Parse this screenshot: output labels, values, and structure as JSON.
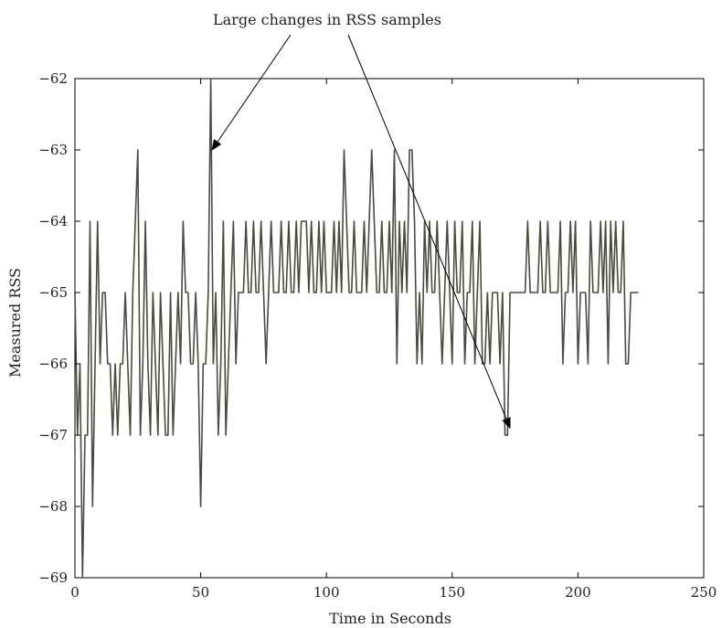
{
  "chart_data": {
    "type": "line",
    "title": "",
    "xlabel": "Time in Seconds",
    "ylabel": "Measured RSS",
    "xlim": [
      0,
      250
    ],
    "ylim": [
      -69,
      -62
    ],
    "xticks": [
      0,
      50,
      100,
      150,
      200,
      250
    ],
    "yticks": [
      -69,
      -68,
      -67,
      -66,
      -65,
      -64,
      -63,
      -62
    ],
    "xtick_labels": [
      "0",
      "50",
      "100",
      "150",
      "200",
      "250"
    ],
    "ytick_labels": [
      "−69",
      "−68",
      "−67",
      "−66",
      "−65",
      "−64",
      "−63",
      "−62"
    ],
    "grid": false,
    "legend": "none",
    "line_color": "#4a4a40",
    "series": [
      {
        "x": [
          0,
          1,
          2,
          3,
          4,
          5,
          6,
          7,
          8,
          9,
          10,
          11,
          12,
          13,
          14,
          15,
          16,
          17,
          18,
          19,
          20,
          21,
          22,
          23,
          24,
          25,
          26,
          27,
          28,
          29,
          30,
          31,
          32,
          33,
          34,
          35,
          36,
          37,
          38,
          39,
          40,
          41,
          42,
          43,
          44,
          45,
          46,
          47,
          48,
          49,
          50,
          51,
          52,
          53,
          54,
          55,
          56,
          57,
          58,
          59,
          60,
          61,
          62,
          63,
          64,
          65,
          66,
          67,
          68,
          69,
          70,
          71,
          72,
          73,
          74,
          75,
          76,
          77,
          78,
          79,
          80,
          81,
          82,
          83,
          84,
          85,
          86,
          87,
          88,
          89,
          90,
          91,
          92,
          93,
          94,
          95,
          96,
          97,
          98,
          99,
          100,
          101,
          102,
          103,
          104,
          105,
          106,
          107,
          108,
          109,
          110,
          111,
          112,
          113,
          114,
          115,
          116,
          117,
          118,
          119,
          120,
          121,
          122,
          123,
          124,
          125,
          126,
          127,
          128,
          129,
          130,
          131,
          132,
          133,
          134,
          135,
          136,
          137,
          138,
          139,
          140,
          141,
          142,
          143,
          144,
          145,
          146,
          147,
          148,
          149,
          150,
          151,
          152,
          153,
          154,
          155,
          156,
          157,
          158,
          159,
          160,
          161,
          162,
          163,
          164,
          165,
          166,
          167,
          168,
          169,
          170,
          171,
          172,
          173,
          174,
          175,
          176,
          177,
          178,
          179,
          180,
          181,
          182,
          183,
          184,
          185,
          186,
          187,
          188,
          189,
          190,
          191,
          192,
          193,
          194,
          195,
          196,
          197,
          198,
          199,
          200,
          201,
          202,
          203,
          204,
          205,
          206,
          207,
          208,
          209,
          210,
          211,
          212,
          213,
          214,
          215,
          216,
          217,
          218,
          219,
          220,
          221,
          222,
          223,
          224
        ],
        "y": [
          -65,
          -67,
          -66,
          -69,
          -67,
          -67,
          -64,
          -68,
          -66,
          -64,
          -66,
          -65,
          -65,
          -66,
          -66,
          -67,
          -66,
          -67,
          -66,
          -66,
          -65,
          -66,
          -67,
          -65,
          -64,
          -63,
          -67,
          -66,
          -64,
          -66,
          -67,
          -65,
          -66,
          -67,
          -65,
          -66,
          -67,
          -67,
          -65,
          -67,
          -66,
          -65,
          -66,
          -64,
          -65,
          -65,
          -66,
          -66,
          -65,
          -66,
          -68,
          -66,
          -66,
          -65,
          -62,
          -66,
          -65,
          -67,
          -66,
          -64,
          -67,
          -66,
          -65,
          -64,
          -66,
          -65,
          -65,
          -65,
          -64,
          -65,
          -65,
          -64,
          -65,
          -65,
          -64,
          -65,
          -66,
          -65,
          -64,
          -65,
          -65,
          -65,
          -64,
          -65,
          -65,
          -64,
          -65,
          -65,
          -64,
          -65,
          -64,
          -64,
          -64,
          -65,
          -64,
          -65,
          -65,
          -64,
          -65,
          -64,
          -65,
          -65,
          -65,
          -64,
          -65,
          -64,
          -65,
          -63,
          -64,
          -65,
          -65,
          -64,
          -65,
          -65,
          -65,
          -64,
          -65,
          -64,
          -63,
          -64,
          -65,
          -65,
          -64,
          -65,
          -65,
          -64,
          -65,
          -63,
          -66,
          -64,
          -65,
          -64,
          -65,
          -63,
          -63,
          -64,
          -66,
          -65,
          -66,
          -64,
          -65,
          -64,
          -65,
          -65,
          -64,
          -65,
          -66,
          -65,
          -64,
          -65,
          -66,
          -64,
          -65,
          -65,
          -64,
          -66,
          -65,
          -65,
          -64,
          -66,
          -65,
          -64,
          -66,
          -66,
          -65,
          -66,
          -65,
          -65,
          -65,
          -66,
          -65,
          -67,
          -67,
          -65,
          -65,
          -65,
          -65,
          -65,
          -65,
          -65,
          -64,
          -65,
          -65,
          -65,
          -65,
          -64,
          -65,
          -65,
          -64,
          -65,
          -65,
          -65,
          -65,
          -64,
          -66,
          -65,
          -65,
          -64,
          -65,
          -64,
          -66,
          -65,
          -65,
          -65,
          -66,
          -64,
          -65,
          -65,
          -65,
          -64,
          -65,
          -64,
          -66,
          -64,
          -65,
          -64,
          -65,
          -65,
          -64,
          -66,
          -66,
          -65,
          -65,
          -65,
          -65
        ]
      }
    ],
    "annotation": {
      "text": "Large changes in RSS samples",
      "arrow_targets": [
        {
          "x": 54.5,
          "y": -63
        },
        {
          "x": 173,
          "y": -66.9
        }
      ]
    }
  }
}
